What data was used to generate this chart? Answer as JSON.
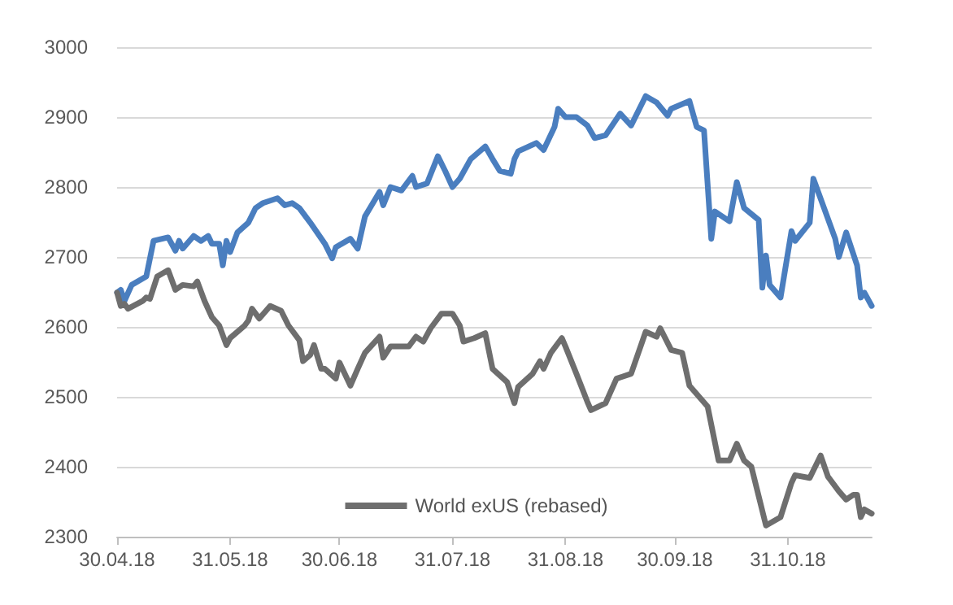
{
  "chart_data": {
    "type": "line",
    "xlim": [
      "2018-04-30",
      "2018-11-23"
    ],
    "xticks": [
      {
        "value": "2018-04-30",
        "label": "30.04.18"
      },
      {
        "value": "2018-05-31",
        "label": "31.05.18"
      },
      {
        "value": "2018-06-30",
        "label": "30.06.18"
      },
      {
        "value": "2018-07-31",
        "label": "31.07.18"
      },
      {
        "value": "2018-08-31",
        "label": "31.08.18"
      },
      {
        "value": "2018-09-30",
        "label": "30.09.18"
      },
      {
        "value": "2018-10-31",
        "label": "31.10.18"
      }
    ],
    "ylim": [
      2300,
      3000
    ],
    "yticks": [
      2300,
      2400,
      2500,
      2600,
      2700,
      2800,
      2900,
      3000
    ],
    "grid": "y",
    "legend": "bottom",
    "marker": "none",
    "line_style": "solid",
    "series": [
      {
        "color": "#4a7ebf",
        "x": [
          "2018-04-30",
          "2018-05-01",
          "2018-05-02",
          "2018-05-04",
          "2018-05-08",
          "2018-05-10",
          "2018-05-14",
          "2018-05-16",
          "2018-05-17",
          "2018-05-18",
          "2018-05-21",
          "2018-05-23",
          "2018-05-25",
          "2018-05-26",
          "2018-05-28",
          "2018-05-29",
          "2018-05-30",
          "2018-05-31",
          "2018-06-02",
          "2018-06-05",
          "2018-06-07",
          "2018-06-09",
          "2018-06-13",
          "2018-06-15",
          "2018-06-17",
          "2018-06-19",
          "2018-06-22",
          "2018-06-26",
          "2018-06-28",
          "2018-06-29",
          "2018-07-03",
          "2018-07-05",
          "2018-07-07",
          "2018-07-11",
          "2018-07-12",
          "2018-07-14",
          "2018-07-17",
          "2018-07-20",
          "2018-07-21",
          "2018-07-24",
          "2018-07-27",
          "2018-07-29",
          "2018-07-31",
          "2018-08-02",
          "2018-08-05",
          "2018-08-09",
          "2018-08-11",
          "2018-08-13",
          "2018-08-16",
          "2018-08-17",
          "2018-08-18",
          "2018-08-23",
          "2018-08-25",
          "2018-08-28",
          "2018-08-29",
          "2018-08-31",
          "2018-09-03",
          "2018-09-06",
          "2018-09-08",
          "2018-09-11",
          "2018-09-15",
          "2018-09-18",
          "2018-09-22",
          "2018-09-25",
          "2018-09-28",
          "2018-09-29",
          "2018-10-04",
          "2018-10-06",
          "2018-10-08",
          "2018-10-10",
          "2018-10-11",
          "2018-10-15",
          "2018-10-17",
          "2018-10-19",
          "2018-10-23",
          "2018-10-24",
          "2018-10-25",
          "2018-10-26",
          "2018-10-29",
          "2018-11-01",
          "2018-11-02",
          "2018-11-06",
          "2018-11-07",
          "2018-11-13",
          "2018-11-14",
          "2018-11-16",
          "2018-11-19",
          "2018-11-20",
          "2018-11-21",
          "2018-11-23"
        ],
        "values": [
          2649,
          2653,
          2637,
          2660,
          2672,
          2723,
          2728,
          2709,
          2723,
          2712,
          2730,
          2723,
          2730,
          2719,
          2719,
          2688,
          2723,
          2707,
          2735,
          2749,
          2770,
          2777,
          2784,
          2774,
          2777,
          2770,
          2749,
          2719,
          2698,
          2714,
          2726,
          2712,
          2758,
          2793,
          2774,
          2800,
          2795,
          2816,
          2800,
          2805,
          2844,
          2823,
          2800,
          2812,
          2840,
          2858,
          2840,
          2823,
          2819,
          2840,
          2851,
          2863,
          2853,
          2886,
          2912,
          2900,
          2900,
          2888,
          2870,
          2874,
          2905,
          2888,
          2930,
          2921,
          2902,
          2912,
          2923,
          2886,
          2881,
          2726,
          2765,
          2751,
          2807,
          2770,
          2753,
          2656,
          2702,
          2660,
          2642,
          2737,
          2723,
          2749,
          2812,
          2726,
          2700,
          2735,
          2688,
          2642,
          2649,
          2630
        ]
      },
      {
        "name": "World exUS (rebased)",
        "color": "#6e6e6e",
        "x": [
          "2018-04-30",
          "2018-05-01",
          "2018-05-02",
          "2018-05-03",
          "2018-05-07",
          "2018-05-08",
          "2018-05-09",
          "2018-05-11",
          "2018-05-14",
          "2018-05-16",
          "2018-05-18",
          "2018-05-21",
          "2018-05-22",
          "2018-05-24",
          "2018-05-26",
          "2018-05-28",
          "2018-05-30",
          "2018-05-31",
          "2018-06-04",
          "2018-06-05",
          "2018-06-06",
          "2018-06-08",
          "2018-06-11",
          "2018-06-14",
          "2018-06-16",
          "2018-06-19",
          "2018-06-20",
          "2018-06-22",
          "2018-06-23",
          "2018-06-25",
          "2018-06-26",
          "2018-06-29",
          "2018-06-30",
          "2018-07-03",
          "2018-07-05",
          "2018-07-07",
          "2018-07-11",
          "2018-07-12",
          "2018-07-14",
          "2018-07-19",
          "2018-07-21",
          "2018-07-23",
          "2018-07-25",
          "2018-07-28",
          "2018-07-31",
          "2018-08-02",
          "2018-08-03",
          "2018-08-06",
          "2018-08-09",
          "2018-08-11",
          "2018-08-15",
          "2018-08-17",
          "2018-08-18",
          "2018-08-22",
          "2018-08-24",
          "2018-08-25",
          "2018-08-27",
          "2018-08-30",
          "2018-08-31",
          "2018-09-03",
          "2018-09-06",
          "2018-09-07",
          "2018-09-11",
          "2018-09-14",
          "2018-09-18",
          "2018-09-22",
          "2018-09-25",
          "2018-09-26",
          "2018-09-29",
          "2018-10-02",
          "2018-10-04",
          "2018-10-09",
          "2018-10-12",
          "2018-10-15",
          "2018-10-17",
          "2018-10-19",
          "2018-10-21",
          "2018-10-23",
          "2018-10-25",
          "2018-10-29",
          "2018-11-01",
          "2018-11-02",
          "2018-11-06",
          "2018-11-09",
          "2018-11-11",
          "2018-11-14",
          "2018-11-16",
          "2018-11-18",
          "2018-11-19",
          "2018-11-20",
          "2018-11-21",
          "2018-11-23"
        ],
        "values": [
          2649,
          2630,
          2633,
          2626,
          2637,
          2642,
          2640,
          2672,
          2681,
          2653,
          2660,
          2658,
          2665,
          2637,
          2614,
          2602,
          2574,
          2584,
          2602,
          2609,
          2626,
          2612,
          2630,
          2623,
          2602,
          2581,
          2551,
          2560,
          2574,
          2540,
          2540,
          2526,
          2549,
          2516,
          2540,
          2563,
          2586,
          2556,
          2572,
          2572,
          2586,
          2579,
          2598,
          2619,
          2619,
          2602,
          2579,
          2584,
          2591,
          2540,
          2521,
          2491,
          2514,
          2533,
          2551,
          2540,
          2563,
          2584,
          2572,
          2533,
          2493,
          2481,
          2491,
          2526,
          2533,
          2593,
          2586,
          2598,
          2567,
          2563,
          2516,
          2486,
          2409,
          2409,
          2433,
          2409,
          2400,
          2358,
          2316,
          2328,
          2377,
          2388,
          2384,
          2416,
          2386,
          2365,
          2353,
          2360,
          2360,
          2328,
          2339,
          2333
        ]
      }
    ]
  }
}
